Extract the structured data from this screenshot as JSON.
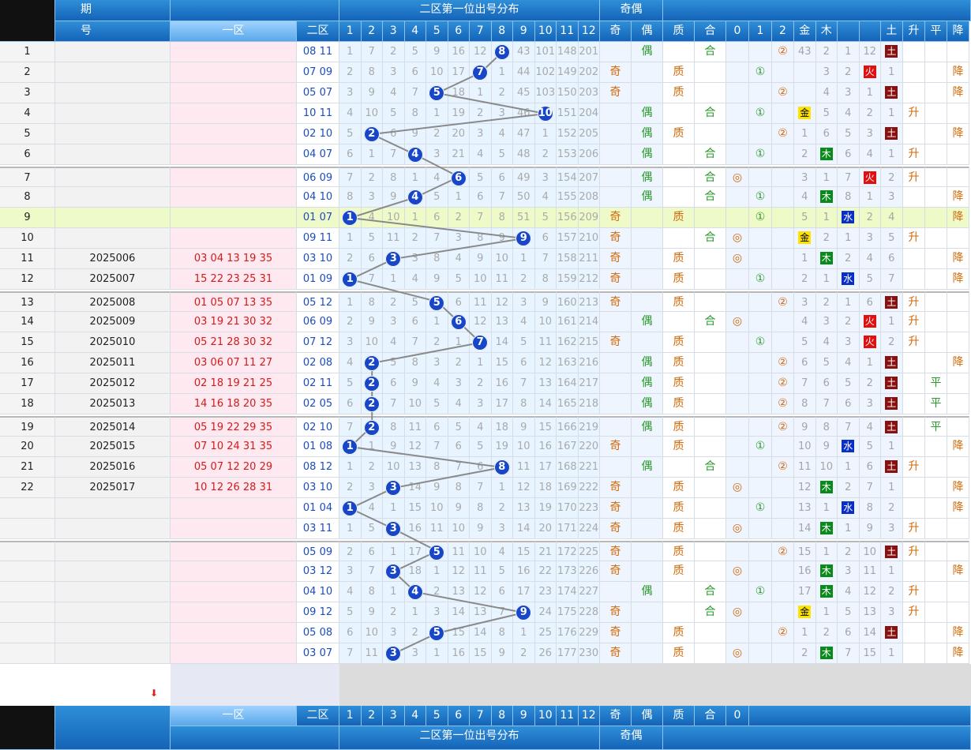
{
  "header": {
    "issue_label_top": "期",
    "issue_label_bottom": "号",
    "zone1": "一区",
    "zone2": "二区",
    "dist_title": "二区第一位出号分布",
    "odd_even_title": "奇偶",
    "cols_dist": [
      "1",
      "2",
      "3",
      "4",
      "5",
      "6",
      "7",
      "8",
      "9",
      "10",
      "11",
      "12"
    ],
    "col_odd": "奇",
    "col_even": "偶",
    "col_prime": "质",
    "col_comp": "合",
    "col_r0": "0",
    "col_r1": "1",
    "col_r2": "2",
    "col_gold": "金",
    "col_wood": "木",
    "col_earth": "土",
    "col_up": "升",
    "col_flat": "平",
    "col_down": "降"
  },
  "colors": {
    "header": "#1463b8",
    "ball": "#1746c8",
    "zone1_text": "#d41a1a",
    "zone2_text": "#1b4cc0"
  },
  "rows": [
    {
      "idx": "1",
      "issue": "",
      "z1": "",
      "z2": "08 11",
      "first": 8,
      "dist": [
        "1",
        "7",
        "2",
        "5",
        "9",
        "16",
        "12",
        "8",
        "43",
        "101",
        "148",
        "201"
      ],
      "odd": "",
      "even": "偶",
      "prime": "",
      "comp": "合",
      "r0": "",
      "r1": "",
      "r2": "②",
      "e": [
        "43",
        "2",
        "1",
        "12",
        "土"
      ],
      "trend": ""
    },
    {
      "idx": "2",
      "issue": "",
      "z1": "",
      "z2": "07 09",
      "first": 7,
      "dist": [
        "2",
        "8",
        "3",
        "6",
        "10",
        "17",
        "7",
        "1",
        "44",
        "102",
        "149",
        "202"
      ],
      "odd": "奇",
      "even": "",
      "prime": "质",
      "comp": "",
      "r0": "",
      "r1": "①",
      "r2": "",
      "e": [
        "",
        "3",
        "2",
        "火",
        "1"
      ],
      "trend": "降"
    },
    {
      "idx": "3",
      "issue": "",
      "z1": "",
      "z2": "05 07",
      "first": 5,
      "dist": [
        "3",
        "9",
        "4",
        "7",
        "5",
        "18",
        "1",
        "2",
        "45",
        "103",
        "150",
        "203"
      ],
      "odd": "奇",
      "even": "",
      "prime": "质",
      "comp": "",
      "r0": "",
      "r1": "",
      "r2": "②",
      "e": [
        "",
        "4",
        "3",
        "1",
        "土"
      ],
      "trend": "降"
    },
    {
      "idx": "4",
      "issue": "",
      "z1": "",
      "z2": "10 11",
      "first": 10,
      "dist": [
        "4",
        "10",
        "5",
        "8",
        "1",
        "19",
        "2",
        "3",
        "46",
        "10",
        "151",
        "204"
      ],
      "odd": "",
      "even": "偶",
      "prime": "",
      "comp": "合",
      "r0": "",
      "r1": "①",
      "r2": "",
      "e": [
        "金",
        "5",
        "4",
        "2",
        "1"
      ],
      "trend": "升"
    },
    {
      "idx": "5",
      "issue": "",
      "z1": "",
      "z2": "02 10",
      "first": 2,
      "dist": [
        "5",
        "2",
        "6",
        "9",
        "2",
        "20",
        "3",
        "4",
        "47",
        "1",
        "152",
        "205"
      ],
      "odd": "",
      "even": "偶",
      "prime": "质",
      "comp": "",
      "r0": "",
      "r1": "",
      "r2": "②",
      "e": [
        "1",
        "6",
        "5",
        "3",
        "土"
      ],
      "trend": "降"
    },
    {
      "idx": "6",
      "issue": "",
      "z1": "",
      "z2": "04 07",
      "first": 4,
      "dist": [
        "6",
        "1",
        "7",
        "4",
        "3",
        "21",
        "4",
        "5",
        "48",
        "2",
        "153",
        "206"
      ],
      "odd": "",
      "even": "偶",
      "prime": "",
      "comp": "合",
      "r0": "",
      "r1": "①",
      "r2": "",
      "e": [
        "2",
        "木",
        "6",
        "4",
        "1"
      ],
      "trend": "升"
    },
    {
      "idx": "7",
      "issue": "",
      "z1": "",
      "z2": "06 09",
      "first": 6,
      "dist": [
        "7",
        "2",
        "8",
        "1",
        "4",
        "6",
        "5",
        "6",
        "49",
        "3",
        "154",
        "207"
      ],
      "odd": "",
      "even": "偶",
      "prime": "",
      "comp": "合",
      "r0": "◎",
      "r1": "",
      "r2": "",
      "e": [
        "3",
        "1",
        "7",
        "火",
        "2"
      ],
      "trend": "升"
    },
    {
      "idx": "8",
      "issue": "",
      "z1": "",
      "z2": "04 10",
      "first": 4,
      "dist": [
        "8",
        "3",
        "9",
        "4",
        "5",
        "1",
        "6",
        "7",
        "50",
        "4",
        "155",
        "208"
      ],
      "odd": "",
      "even": "偶",
      "prime": "",
      "comp": "合",
      "r0": "",
      "r1": "①",
      "r2": "",
      "e": [
        "4",
        "木",
        "8",
        "1",
        "3"
      ],
      "trend": "降"
    },
    {
      "idx": "9",
      "issue": "",
      "z1": "",
      "z2": "01 07",
      "first": 1,
      "dist": [
        "1",
        "4",
        "10",
        "1",
        "6",
        "2",
        "7",
        "8",
        "51",
        "5",
        "156",
        "209"
      ],
      "odd": "奇",
      "even": "",
      "prime": "质",
      "comp": "",
      "r0": "",
      "r1": "①",
      "r2": "",
      "e": [
        "5",
        "1",
        "水",
        "2",
        "4"
      ],
      "trend": "降",
      "hl": true
    },
    {
      "idx": "10",
      "issue": "",
      "z1": "",
      "z2": "09 11",
      "first": 9,
      "dist": [
        "1",
        "5",
        "11",
        "2",
        "7",
        "3",
        "8",
        "9",
        "9",
        "6",
        "157",
        "210"
      ],
      "odd": "奇",
      "even": "",
      "prime": "",
      "comp": "合",
      "r0": "◎",
      "r1": "",
      "r2": "",
      "e": [
        "金",
        "2",
        "1",
        "3",
        "5"
      ],
      "trend": "升"
    },
    {
      "idx": "11",
      "issue": "2025006",
      "z1": "03 04 13 19 35",
      "z2": "03 10",
      "first": 3,
      "dist": [
        "2",
        "6",
        "3",
        "3",
        "8",
        "4",
        "9",
        "10",
        "1",
        "7",
        "158",
        "211"
      ],
      "odd": "奇",
      "even": "",
      "prime": "质",
      "comp": "",
      "r0": "◎",
      "r1": "",
      "r2": "",
      "e": [
        "1",
        "木",
        "2",
        "4",
        "6"
      ],
      "trend": "降"
    },
    {
      "idx": "12",
      "issue": "2025007",
      "z1": "15 22 23 25 31",
      "z2": "01 09",
      "first": 1,
      "dist": [
        "1",
        "7",
        "1",
        "4",
        "9",
        "5",
        "10",
        "11",
        "2",
        "8",
        "159",
        "212"
      ],
      "odd": "奇",
      "even": "",
      "prime": "质",
      "comp": "",
      "r0": "",
      "r1": "①",
      "r2": "",
      "e": [
        "2",
        "1",
        "水",
        "5",
        "7"
      ],
      "trend": "降"
    },
    {
      "idx": "13",
      "issue": "2025008",
      "z1": "01 05 07 13 35",
      "z2": "05 12",
      "first": 5,
      "dist": [
        "1",
        "8",
        "2",
        "5",
        "5",
        "6",
        "11",
        "12",
        "3",
        "9",
        "160",
        "213"
      ],
      "odd": "奇",
      "even": "",
      "prime": "质",
      "comp": "",
      "r0": "",
      "r1": "",
      "r2": "②",
      "e": [
        "3",
        "2",
        "1",
        "6",
        "土"
      ],
      "trend": "升"
    },
    {
      "idx": "14",
      "issue": "2025009",
      "z1": "03 19 21 30 32",
      "z2": "06 09",
      "first": 6,
      "dist": [
        "2",
        "9",
        "3",
        "6",
        "1",
        "6",
        "12",
        "13",
        "4",
        "10",
        "161",
        "214"
      ],
      "odd": "",
      "even": "偶",
      "prime": "",
      "comp": "合",
      "r0": "◎",
      "r1": "",
      "r2": "",
      "e": [
        "4",
        "3",
        "2",
        "火",
        "1"
      ],
      "trend": "升"
    },
    {
      "idx": "15",
      "issue": "2025010",
      "z1": "05 21 28 30 32",
      "z2": "07 12",
      "first": 7,
      "dist": [
        "3",
        "10",
        "4",
        "7",
        "2",
        "1",
        "7",
        "14",
        "5",
        "11",
        "162",
        "215"
      ],
      "odd": "奇",
      "even": "",
      "prime": "质",
      "comp": "",
      "r0": "",
      "r1": "①",
      "r2": "",
      "e": [
        "5",
        "4",
        "3",
        "火",
        "2"
      ],
      "trend": "升"
    },
    {
      "idx": "16",
      "issue": "2025011",
      "z1": "03 06 07 11 27",
      "z2": "02 08",
      "first": 2,
      "dist": [
        "4",
        "2",
        "5",
        "8",
        "3",
        "2",
        "1",
        "15",
        "6",
        "12",
        "163",
        "216"
      ],
      "odd": "",
      "even": "偶",
      "prime": "质",
      "comp": "",
      "r0": "",
      "r1": "",
      "r2": "②",
      "e": [
        "6",
        "5",
        "4",
        "1",
        "土"
      ],
      "trend": "降"
    },
    {
      "idx": "17",
      "issue": "2025012",
      "z1": "02 18 19 21 25",
      "z2": "02 11",
      "first": 2,
      "dist": [
        "5",
        "2",
        "6",
        "9",
        "4",
        "3",
        "2",
        "16",
        "7",
        "13",
        "164",
        "217"
      ],
      "odd": "",
      "even": "偶",
      "prime": "质",
      "comp": "",
      "r0": "",
      "r1": "",
      "r2": "②",
      "e": [
        "7",
        "6",
        "5",
        "2",
        "土"
      ],
      "trend": "平"
    },
    {
      "idx": "18",
      "issue": "2025013",
      "z1": "14 16 18 20 35",
      "z2": "02 05",
      "first": 2,
      "dist": [
        "6",
        "2",
        "7",
        "10",
        "5",
        "4",
        "3",
        "17",
        "8",
        "14",
        "165",
        "218"
      ],
      "odd": "",
      "even": "偶",
      "prime": "质",
      "comp": "",
      "r0": "",
      "r1": "",
      "r2": "②",
      "e": [
        "8",
        "7",
        "6",
        "3",
        "土"
      ],
      "trend": "平"
    },
    {
      "idx": "19",
      "issue": "2025014",
      "z1": "05 19 22 29 35",
      "z2": "02 10",
      "first": 2,
      "dist": [
        "7",
        "2",
        "8",
        "11",
        "6",
        "5",
        "4",
        "18",
        "9",
        "15",
        "166",
        "219"
      ],
      "odd": "",
      "even": "偶",
      "prime": "质",
      "comp": "",
      "r0": "",
      "r1": "",
      "r2": "②",
      "e": [
        "9",
        "8",
        "7",
        "4",
        "土"
      ],
      "trend": "平"
    },
    {
      "idx": "20",
      "issue": "2025015",
      "z1": "07 10 24 31 35",
      "z2": "01 08",
      "first": 1,
      "dist": [
        "1",
        "1",
        "9",
        "12",
        "7",
        "6",
        "5",
        "19",
        "10",
        "16",
        "167",
        "220"
      ],
      "odd": "奇",
      "even": "",
      "prime": "质",
      "comp": "",
      "r0": "",
      "r1": "①",
      "r2": "",
      "e": [
        "10",
        "9",
        "水",
        "5",
        "1"
      ],
      "trend": "降"
    },
    {
      "idx": "21",
      "issue": "2025016",
      "z1": "05 07 12 20 29",
      "z2": "08 12",
      "first": 8,
      "dist": [
        "1",
        "2",
        "10",
        "13",
        "8",
        "7",
        "6",
        "8",
        "11",
        "17",
        "168",
        "221"
      ],
      "odd": "",
      "even": "偶",
      "prime": "",
      "comp": "合",
      "r0": "",
      "r1": "",
      "r2": "②",
      "e": [
        "11",
        "10",
        "1",
        "6",
        "土"
      ],
      "trend": "升"
    },
    {
      "idx": "22",
      "issue": "2025017",
      "z1": "10 12 26 28 31",
      "z2": "03 10",
      "first": 3,
      "dist": [
        "2",
        "3",
        "3",
        "14",
        "9",
        "8",
        "7",
        "1",
        "12",
        "18",
        "169",
        "222"
      ],
      "odd": "奇",
      "even": "",
      "prime": "质",
      "comp": "",
      "r0": "◎",
      "r1": "",
      "r2": "",
      "e": [
        "12",
        "木",
        "2",
        "7",
        "1"
      ],
      "trend": "降"
    },
    {
      "idx": "",
      "issue": "",
      "z1": "",
      "z2": "01 04",
      "first": 1,
      "dist": [
        "1",
        "4",
        "1",
        "15",
        "10",
        "9",
        "8",
        "2",
        "13",
        "19",
        "170",
        "223"
      ],
      "odd": "奇",
      "even": "",
      "prime": "质",
      "comp": "",
      "r0": "",
      "r1": "①",
      "r2": "",
      "e": [
        "13",
        "1",
        "水",
        "8",
        "2"
      ],
      "trend": "降"
    },
    {
      "idx": "",
      "issue": "",
      "z1": "",
      "z2": "03 11",
      "first": 3,
      "dist": [
        "1",
        "5",
        "3",
        "16",
        "11",
        "10",
        "9",
        "3",
        "14",
        "20",
        "171",
        "224"
      ],
      "odd": "奇",
      "even": "",
      "prime": "质",
      "comp": "",
      "r0": "◎",
      "r1": "",
      "r2": "",
      "e": [
        "14",
        "木",
        "1",
        "9",
        "3"
      ],
      "trend": "升"
    },
    {
      "idx": "",
      "issue": "",
      "z1": "",
      "z2": "05 09",
      "first": 5,
      "dist": [
        "2",
        "6",
        "1",
        "17",
        "5",
        "11",
        "10",
        "4",
        "15",
        "21",
        "172",
        "225"
      ],
      "odd": "奇",
      "even": "",
      "prime": "质",
      "comp": "",
      "r0": "",
      "r1": "",
      "r2": "②",
      "e": [
        "15",
        "1",
        "2",
        "10",
        "土"
      ],
      "trend": "升"
    },
    {
      "idx": "",
      "issue": "",
      "z1": "",
      "z2": "03 12",
      "first": 3,
      "dist": [
        "3",
        "7",
        "3",
        "18",
        "1",
        "12",
        "11",
        "5",
        "16",
        "22",
        "173",
        "226"
      ],
      "odd": "奇",
      "even": "",
      "prime": "质",
      "comp": "",
      "r0": "◎",
      "r1": "",
      "r2": "",
      "e": [
        "16",
        "木",
        "3",
        "11",
        "1"
      ],
      "trend": "降"
    },
    {
      "idx": "",
      "issue": "",
      "z1": "",
      "z2": "04 10",
      "first": 4,
      "dist": [
        "4",
        "8",
        "1",
        "4",
        "2",
        "13",
        "12",
        "6",
        "17",
        "23",
        "174",
        "227"
      ],
      "odd": "",
      "even": "偶",
      "prime": "",
      "comp": "合",
      "r0": "",
      "r1": "①",
      "r2": "",
      "e": [
        "17",
        "木",
        "4",
        "12",
        "2"
      ],
      "trend": "升"
    },
    {
      "idx": "",
      "issue": "",
      "z1": "",
      "z2": "09 12",
      "first": 9,
      "dist": [
        "5",
        "9",
        "2",
        "1",
        "3",
        "14",
        "13",
        "7",
        "9",
        "24",
        "175",
        "228"
      ],
      "odd": "奇",
      "even": "",
      "prime": "",
      "comp": "合",
      "r0": "◎",
      "r1": "",
      "r2": "",
      "e": [
        "金",
        "1",
        "5",
        "13",
        "3"
      ],
      "trend": "升"
    },
    {
      "idx": "",
      "issue": "",
      "z1": "",
      "z2": "05 08",
      "first": 5,
      "dist": [
        "6",
        "10",
        "3",
        "2",
        "5",
        "15",
        "14",
        "8",
        "1",
        "25",
        "176",
        "229"
      ],
      "odd": "奇",
      "even": "",
      "prime": "质",
      "comp": "",
      "r0": "",
      "r1": "",
      "r2": "②",
      "e": [
        "1",
        "2",
        "6",
        "14",
        "土"
      ],
      "trend": "降"
    },
    {
      "idx": "",
      "issue": "",
      "z1": "",
      "z2": "03 07",
      "first": 3,
      "dist": [
        "7",
        "11",
        "3",
        "3",
        "1",
        "16",
        "15",
        "9",
        "2",
        "26",
        "177",
        "230"
      ],
      "odd": "奇",
      "even": "",
      "prime": "质",
      "comp": "",
      "r0": "◎",
      "r1": "",
      "r2": "",
      "e": [
        "2",
        "木",
        "7",
        "15",
        "1"
      ],
      "trend": "降"
    }
  ]
}
